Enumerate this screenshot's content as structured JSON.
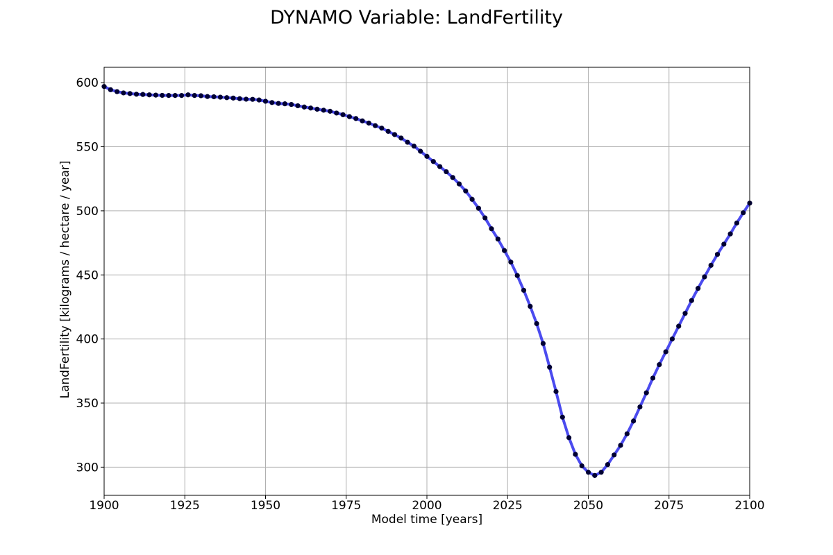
{
  "chart_data": {
    "type": "line",
    "title": "DYNAMO Variable: LandFertility",
    "xlabel": "Model time [years]",
    "ylabel": "LandFertility [kilograms / hectare / year]",
    "xlim": [
      1900,
      2100
    ],
    "ylim": [
      278,
      612
    ],
    "xticks": [
      "1900",
      "1925",
      "1950",
      "1975",
      "2000",
      "2025",
      "2050",
      "2075",
      "2100"
    ],
    "yticks": [
      "300",
      "350",
      "400",
      "450",
      "500",
      "550",
      "600"
    ],
    "grid": true,
    "legend": "none",
    "line_color": "#4b4bef",
    "marker_color": "#000033",
    "series": [
      {
        "x": [
          1900,
          1902,
          1904,
          1906,
          1908,
          1910,
          1912,
          1914,
          1916,
          1918,
          1920,
          1922,
          1924,
          1926,
          1928,
          1930,
          1932,
          1934,
          1936,
          1938,
          1940,
          1942,
          1944,
          1946,
          1948,
          1950,
          1952,
          1954,
          1956,
          1958,
          1960,
          1962,
          1964,
          1966,
          1968,
          1970,
          1972,
          1974,
          1976,
          1978,
          1980,
          1982,
          1984,
          1986,
          1988,
          1990,
          1992,
          1994,
          1996,
          1998,
          2000,
          2002,
          2004,
          2006,
          2008,
          2010,
          2012,
          2014,
          2016,
          2018,
          2020,
          2022,
          2024,
          2026,
          2028,
          2030,
          2032,
          2034,
          2036,
          2038,
          2040,
          2042,
          2044,
          2046,
          2048,
          2050,
          2052,
          2054,
          2056,
          2058,
          2060,
          2062,
          2064,
          2066,
          2068,
          2070,
          2072,
          2074,
          2076,
          2078,
          2080,
          2082,
          2084,
          2086,
          2088,
          2090,
          2092,
          2094,
          2096,
          2098,
          2100
        ],
        "values": [
          597,
          594.5,
          593,
          592,
          591.5,
          591,
          590.8,
          590.5,
          590.3,
          590.1,
          590,
          590,
          590,
          590.5,
          590,
          589.8,
          589.2,
          589,
          588.7,
          588.3,
          588,
          587.5,
          587.1,
          587,
          586.5,
          585.5,
          584.5,
          583.8,
          583.5,
          583,
          582,
          581,
          580.2,
          579.3,
          578.5,
          577.7,
          576.3,
          575,
          573.5,
          572,
          570.2,
          568.5,
          566.5,
          564.5,
          562,
          559.5,
          556.8,
          553.5,
          550.5,
          546.5,
          542.5,
          538.5,
          534.5,
          530.5,
          526,
          521,
          515.5,
          509,
          502,
          494.5,
          486,
          478,
          469,
          460,
          449.5,
          438,
          425.5,
          412,
          396.5,
          378,
          359,
          339,
          323,
          310,
          301,
          296,
          293.5,
          296,
          302,
          309.5,
          317,
          326,
          336,
          347,
          358,
          369.5,
          380,
          390,
          400,
          410,
          420,
          430,
          439.5,
          448.5,
          457.5,
          466,
          474,
          482,
          490.5,
          498.5,
          506
        ]
      }
    ]
  }
}
